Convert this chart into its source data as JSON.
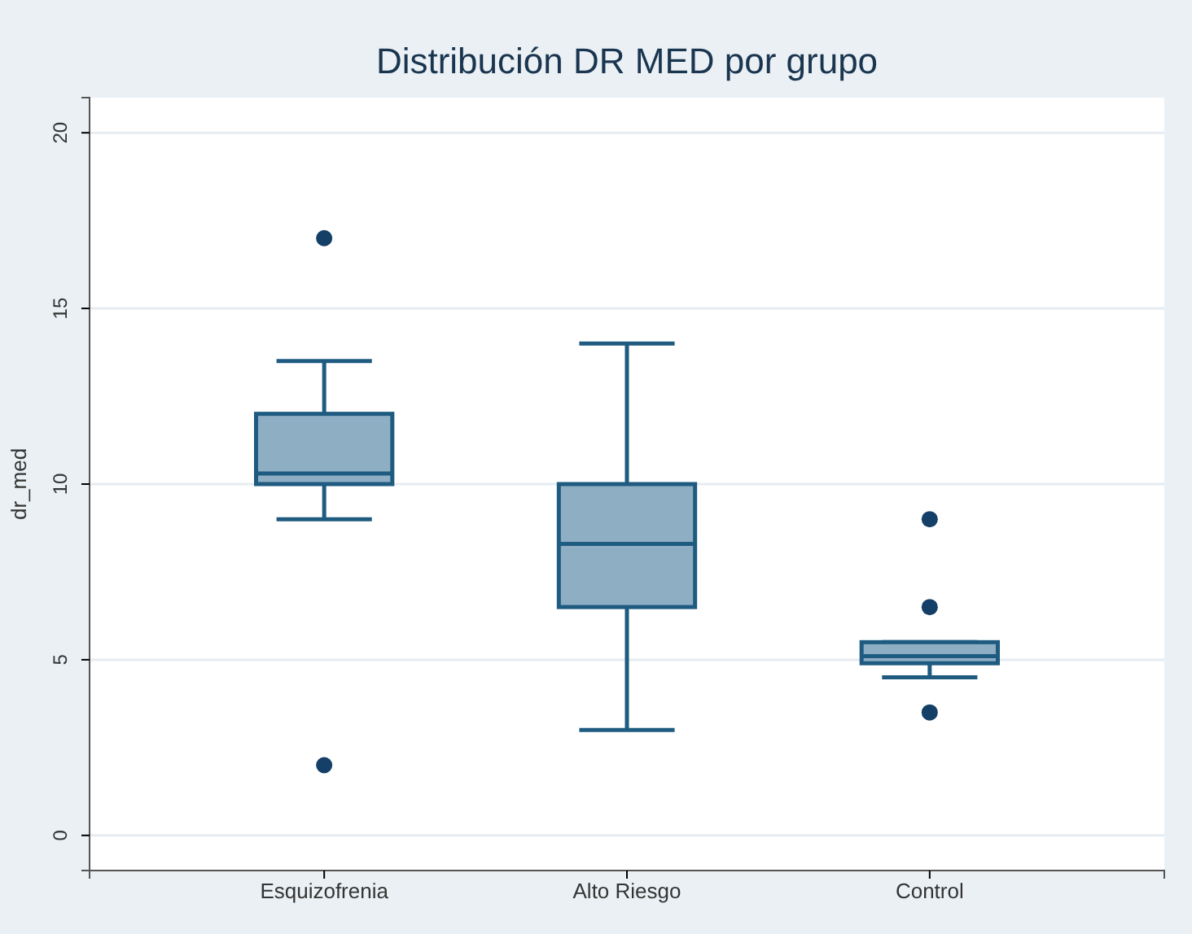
{
  "chart_data": {
    "type": "box",
    "title": "Distribución DR MED por grupo",
    "ylabel": "dr_med",
    "categories": [
      "Esquizofrenia",
      "Alto Riesgo",
      "Control"
    ],
    "boxes": [
      {
        "low": 9,
        "q1": 10,
        "median": 10.3,
        "q3": 12,
        "high": 13.5,
        "outliers": [
          17,
          2
        ]
      },
      {
        "low": 3,
        "q1": 6.5,
        "median": 8.3,
        "q3": 10,
        "high": 14
      },
      {
        "low": 4.5,
        "q1": 4.9,
        "median": 5.1,
        "q3": 5.5,
        "high": 5.5,
        "outliers": [
          9,
          6.5,
          3.5
        ]
      }
    ],
    "color": "#8eaec4",
    "ylim": [
      -1,
      21
    ],
    "yticks": [
      0,
      5,
      10,
      15,
      20
    ],
    "grid": "y"
  }
}
